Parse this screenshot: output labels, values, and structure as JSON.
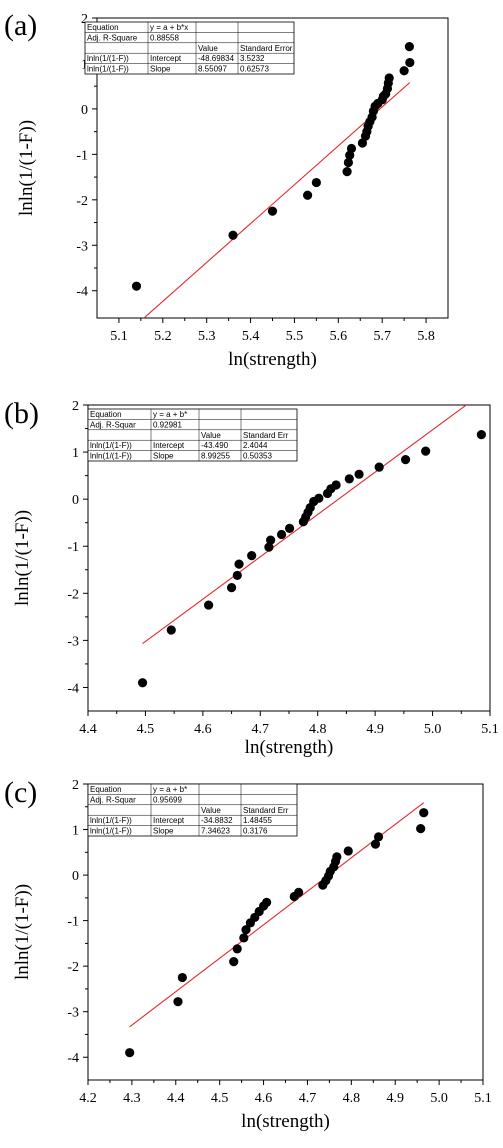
{
  "chart_data": [
    {
      "type": "scatter",
      "panel_label": "(a)",
      "xlabel": "ln(strength)",
      "ylabel": "lnln(1/(1-F))",
      "xlim": [
        5.05,
        5.85
      ],
      "ylim": [
        -4.6,
        2.0
      ],
      "xticks": [
        5.1,
        5.2,
        5.3,
        5.4,
        5.5,
        5.6,
        5.7,
        5.8
      ],
      "yticks": [
        -4,
        -3,
        -2,
        -1,
        0,
        1,
        2
      ],
      "tick_labels_x": [
        "5.1",
        "5.2",
        "5.3",
        "5.4",
        "5.5",
        "5.6",
        "5.7",
        "5.8"
      ],
      "tick_labels_y": [
        "-4",
        "-3",
        "-2",
        "-1",
        "0",
        "1",
        "2"
      ],
      "fit": {
        "intercept": -48.69834,
        "slope": 8.55097
      },
      "line_color": "#e8262a",
      "marker_color": "#000000",
      "points": [
        [
          5.14,
          -3.9
        ],
        [
          5.36,
          -2.78
        ],
        [
          5.45,
          -2.25
        ],
        [
          5.53,
          -1.9
        ],
        [
          5.55,
          -1.62
        ],
        [
          5.62,
          -1.38
        ],
        [
          5.623,
          -1.18
        ],
        [
          5.626,
          -1.02
        ],
        [
          5.63,
          -0.87
        ],
        [
          5.655,
          -0.75
        ],
        [
          5.662,
          -0.6
        ],
        [
          5.665,
          -0.5
        ],
        [
          5.668,
          -0.38
        ],
        [
          5.672,
          -0.28
        ],
        [
          5.677,
          -0.18
        ],
        [
          5.68,
          -0.05
        ],
        [
          5.684,
          0.06
        ],
        [
          5.69,
          0.12
        ],
        [
          5.7,
          0.2
        ],
        [
          5.703,
          0.28
        ],
        [
          5.708,
          0.33
        ],
        [
          5.712,
          0.45
        ],
        [
          5.714,
          0.57
        ],
        [
          5.716,
          0.68
        ],
        [
          5.75,
          0.84
        ],
        [
          5.763,
          1.02
        ],
        [
          5.762,
          1.37
        ]
      ],
      "stats_table": {
        "rows": [
          [
            "Equation",
            "y = a + b*x",
            "",
            ""
          ],
          [
            "Adj. R-Square",
            "0.88558",
            "",
            ""
          ],
          [
            "",
            "",
            "Value",
            "Standard Error"
          ],
          [
            "lnln(1/(1-F))",
            "Intercept",
            "-48.69834",
            "3.5232"
          ],
          [
            "lnln(1/(1-F))",
            "Slope",
            "8.55097",
            "0.62573"
          ]
        ]
      }
    },
    {
      "type": "scatter",
      "panel_label": "(b)",
      "xlabel": "ln(strength)",
      "ylabel": "lnln(1/(1-F))",
      "xlim": [
        4.4,
        5.1
      ],
      "ylim": [
        -4.5,
        2.0
      ],
      "xticks": [
        4.4,
        4.5,
        4.6,
        4.7,
        4.8,
        4.9,
        5.0,
        5.1
      ],
      "yticks": [
        -4,
        -3,
        -2,
        -1,
        0,
        1,
        2
      ],
      "tick_labels_x": [
        "4.4",
        "4.5",
        "4.6",
        "4.7",
        "4.8",
        "4.9",
        "5.0",
        "5.1"
      ],
      "tick_labels_y": [
        "-4",
        "-3",
        "-2",
        "-1",
        "0",
        "1",
        "2"
      ],
      "fit": {
        "intercept": -43.49,
        "slope": 8.99255
      },
      "line_color": "#e8262a",
      "marker_color": "#000000",
      "points": [
        [
          4.495,
          -3.9
        ],
        [
          4.545,
          -2.78
        ],
        [
          4.61,
          -2.25
        ],
        [
          4.65,
          -1.88
        ],
        [
          4.66,
          -1.62
        ],
        [
          4.663,
          -1.38
        ],
        [
          4.685,
          -1.2
        ],
        [
          4.715,
          -1.02
        ],
        [
          4.718,
          -0.87
        ],
        [
          4.737,
          -0.75
        ],
        [
          4.751,
          -0.62
        ],
        [
          4.775,
          -0.48
        ],
        [
          4.779,
          -0.38
        ],
        [
          4.783,
          -0.28
        ],
        [
          4.787,
          -0.18
        ],
        [
          4.793,
          -0.05
        ],
        [
          4.802,
          0.02
        ],
        [
          4.817,
          0.12
        ],
        [
          4.823,
          0.22
        ],
        [
          4.832,
          0.3
        ],
        [
          4.855,
          0.43
        ],
        [
          4.872,
          0.53
        ],
        [
          4.907,
          0.68
        ],
        [
          4.953,
          0.84
        ],
        [
          4.988,
          1.02
        ],
        [
          5.085,
          1.37
        ]
      ],
      "stats_table": {
        "rows": [
          [
            "Equation",
            "y = a + b*",
            "",
            ""
          ],
          [
            "Adj. R-Squar",
            "0.92981",
            "",
            ""
          ],
          [
            "",
            "",
            "Value",
            "Standard Err"
          ],
          [
            "lnln(1/(1-F))",
            "Intercept",
            "-43.490",
            "2.4044"
          ],
          [
            "lnln(1/(1-F))",
            "Slope",
            "8.99255",
            "0.50353"
          ]
        ]
      }
    },
    {
      "type": "scatter",
      "panel_label": "(c)",
      "xlabel": "ln(strength)",
      "ylabel": "lnln(1/(1-F))",
      "xlim": [
        4.2,
        5.1
      ],
      "ylim": [
        -4.5,
        2.0
      ],
      "xticks": [
        4.2,
        4.3,
        4.4,
        4.5,
        4.6,
        4.7,
        4.8,
        4.9,
        5.0,
        5.1
      ],
      "yticks": [
        -4,
        -3,
        -2,
        -1,
        0,
        1,
        2
      ],
      "tick_labels_x": [
        "4.2",
        "4.3",
        "4.4",
        "4.5",
        "4.6",
        "4.7",
        "4.8",
        "4.9",
        "5.0",
        "5.1"
      ],
      "tick_labels_y": [
        "-4",
        "-3",
        "-2",
        "-1",
        "0",
        "1",
        "2"
      ],
      "fit": {
        "intercept": -34.8832,
        "slope": 7.34623
      },
      "line_color": "#e8262a",
      "marker_color": "#000000",
      "points": [
        [
          4.295,
          -3.9
        ],
        [
          4.405,
          -2.78
        ],
        [
          4.415,
          -2.25
        ],
        [
          4.532,
          -1.9
        ],
        [
          4.54,
          -1.62
        ],
        [
          4.555,
          -1.38
        ],
        [
          4.56,
          -1.2
        ],
        [
          4.57,
          -1.05
        ],
        [
          4.58,
          -0.93
        ],
        [
          4.59,
          -0.8
        ],
        [
          4.6,
          -0.68
        ],
        [
          4.607,
          -0.6
        ],
        [
          4.67,
          -0.47
        ],
        [
          4.68,
          -0.38
        ],
        [
          4.735,
          -0.22
        ],
        [
          4.742,
          -0.12
        ],
        [
          4.748,
          -0.02
        ],
        [
          4.752,
          0.08
        ],
        [
          4.76,
          0.18
        ],
        [
          4.764,
          0.3
        ],
        [
          4.767,
          0.4
        ],
        [
          4.793,
          0.53
        ],
        [
          4.855,
          0.68
        ],
        [
          4.862,
          0.84
        ],
        [
          4.958,
          1.02
        ],
        [
          4.965,
          1.37
        ]
      ],
      "stats_table": {
        "rows": [
          [
            "Equation",
            "y = a + b*",
            "",
            ""
          ],
          [
            "Adj. R-Squar",
            "0.95699",
            "",
            ""
          ],
          [
            "",
            "",
            "Value",
            "Standard Err"
          ],
          [
            "lnln(1/(1-F))",
            "Intercept",
            "-34.8832",
            "1.48455"
          ],
          [
            "lnln(1/(1-F))",
            "Slope",
            "7.34623",
            "0.3176"
          ]
        ]
      }
    }
  ]
}
